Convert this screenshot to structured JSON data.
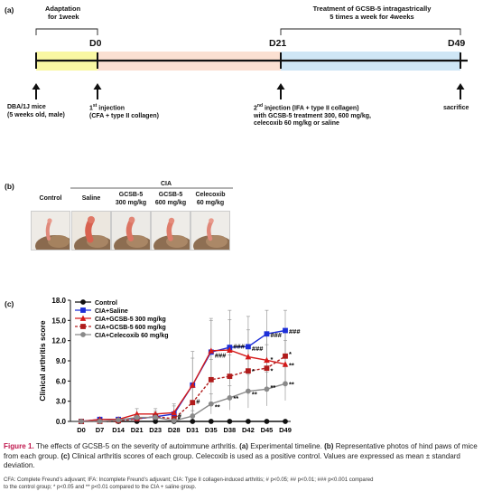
{
  "panel_a": {
    "label": "(a)",
    "adaptation": [
      "Adaptation",
      "for 1week"
    ],
    "treatment": [
      "Treatment of GCSB-5 intragastrically",
      "5 times a week for 4weeks"
    ],
    "days": [
      "D0",
      "D21",
      "D49"
    ],
    "mice": [
      "DBA/1J mice",
      "(5 weeks old, male)"
    ],
    "first_injection": {
      "base": "1",
      "sup": "st",
      "rest": " injection",
      "line2": "(CFA  + type II collagen)"
    },
    "second_injection": {
      "base": "2",
      "sup": "nd",
      "rest": " injection (IFA + type II collagen)",
      "line2": "with GCSB-5 treatment 300, 600 mg/kg,",
      "line3": "celecoxib 60 mg/kg or saline"
    },
    "sacrifice": "sacrifice",
    "colors": {
      "adaptation": "#f9f7a3",
      "induction": "#fbe0d2",
      "treatment": "#cfe6f5"
    }
  },
  "panel_b": {
    "label": "(b)",
    "group_header": "CIA",
    "columns": [
      {
        "line1": "Control",
        "line2": ""
      },
      {
        "line1": "Saline",
        "line2": ""
      },
      {
        "line1": "GCSB-5",
        "line2": "300 mg/kg"
      },
      {
        "line1": "GCSB-5",
        "line2": "600 mg/kg"
      },
      {
        "line1": "Celecoxib",
        "line2": "60 mg/kg"
      }
    ]
  },
  "panel_c": {
    "label": "(c)"
  },
  "chart_data": {
    "type": "line",
    "ylabel": "Clinical arthritis score",
    "xlabel": "",
    "categories": [
      "D0",
      "D7",
      "D14",
      "D21",
      "D23",
      "D28",
      "D31",
      "D35",
      "D38",
      "D42",
      "D45",
      "D49"
    ],
    "ylim": [
      0,
      18
    ],
    "yticks": [
      "0.0",
      "3.0",
      "6.0",
      "9.0",
      "12.0",
      "15.0",
      "18.0"
    ],
    "legend_position": "top-left",
    "series": [
      {
        "name": "Control",
        "color": "#111111",
        "marker": "circle",
        "dashed": false,
        "values": [
          0,
          0,
          0,
          0,
          0,
          0,
          0,
          0,
          0,
          0,
          0,
          0
        ]
      },
      {
        "name": "CIA+Saline",
        "color": "#1c2ed8",
        "marker": "square",
        "dashed": false,
        "values": [
          0,
          0.3,
          0.3,
          0.4,
          0.7,
          1.1,
          5.4,
          10.3,
          11.0,
          11.1,
          13.0,
          13.5
        ],
        "err": [
          0,
          0.3,
          0.3,
          0.5,
          0.8,
          1.5,
          5.0,
          5.0,
          5.5,
          4.5,
          3.5,
          3.0
        ]
      },
      {
        "name": "CIA+GCSB-5 300 mg/kg",
        "color": "#d41a1a",
        "marker": "triangle",
        "dashed": false,
        "values": [
          0,
          0.3,
          0.3,
          1.1,
          1.1,
          1.3,
          5.4,
          10.5,
          10.6,
          9.6,
          9.1,
          8.5
        ],
        "err": [
          0,
          0.3,
          0.3,
          0.8,
          0.8,
          1.0,
          4.0,
          4.5,
          4.5,
          4.0,
          3.8,
          3.5
        ]
      },
      {
        "name": "CIA+GCSB-5 600 mg/kg",
        "color": "#b01c1c",
        "marker": "square",
        "dashed": true,
        "values": [
          0,
          0,
          0.1,
          0.4,
          0.7,
          0.4,
          2.8,
          6.2,
          6.7,
          7.5,
          7.9,
          9.7
        ],
        "err": [
          0,
          0.1,
          0.2,
          0.4,
          0.6,
          0.6,
          2.2,
          3.0,
          3.2,
          3.5,
          3.5,
          3.5
        ]
      },
      {
        "name": "CIA+Celecoxib 60 mg/kg",
        "color": "#8a8a8a",
        "marker": "circle",
        "dashed": false,
        "values": [
          0,
          0,
          0.2,
          0.6,
          0.6,
          0.1,
          0.8,
          2.6,
          3.5,
          4.5,
          4.8,
          5.6
        ],
        "err": [
          0,
          0.1,
          0.2,
          0.5,
          0.5,
          0.2,
          0.8,
          1.5,
          1.8,
          2.5,
          2.5,
          2.5
        ]
      }
    ],
    "annotations": [
      {
        "text": "#",
        "x": "D31",
        "y": 3.0
      },
      {
        "text": "###",
        "x": "D35",
        "y": 9.9
      },
      {
        "text": "###",
        "x": "D38",
        "y": 11.2
      },
      {
        "text": "###",
        "x": "D42",
        "y": 10.9
      },
      {
        "text": "###",
        "x": "D45",
        "y": 12.9
      },
      {
        "text": "###",
        "x": "D49",
        "y": 13.4
      },
      {
        "text": "#",
        "x": "D28",
        "y": 0.9
      },
      {
        "text": "*",
        "x": "D28",
        "y": 0.4
      },
      {
        "text": "**",
        "x": "D35",
        "y": 2.2
      },
      {
        "text": "**",
        "x": "D38",
        "y": 3.5
      },
      {
        "text": "**",
        "x": "D42",
        "y": 4.1
      },
      {
        "text": "**",
        "x": "D45",
        "y": 5.1
      },
      {
        "text": "**",
        "x": "D49",
        "y": 5.6
      },
      {
        "text": "*",
        "x": "D42",
        "y": 7.5
      },
      {
        "text": "*",
        "x": "D45",
        "y": 7.6
      },
      {
        "text": "*",
        "x": "D45",
        "y": 9.3
      },
      {
        "text": "*",
        "x": "D49",
        "y": 10.1
      },
      {
        "text": "**",
        "x": "D49",
        "y": 8.4
      }
    ]
  },
  "caption": {
    "figure": "Figure 1.",
    "text1": " The effects of GCSB-5 on the severity of autoimmune arthritis. ",
    "a": "(a)",
    "text2": " Experimental timeline. ",
    "b": "(b)",
    "text3": " Representative photos of hind paws of mice from each group. ",
    "c": "(c)",
    "text4": " Clinical arthritis  scores of each group. Celecoxib is used as a positive control. Values are expressed as mean ± standard deviation."
  },
  "footnote": {
    "line1": "CFA: Complete Freund’s adjuvant; IFA: Incomplete Freund’s adjuvant; CIA: Type II collagen-induced arthritis; # p<0.05; ## p<0.01; ### p<0.001 compared",
    "line2": "to the control group; * p<0.05 and ** p<0.01 compared to the CIA + saline group."
  }
}
